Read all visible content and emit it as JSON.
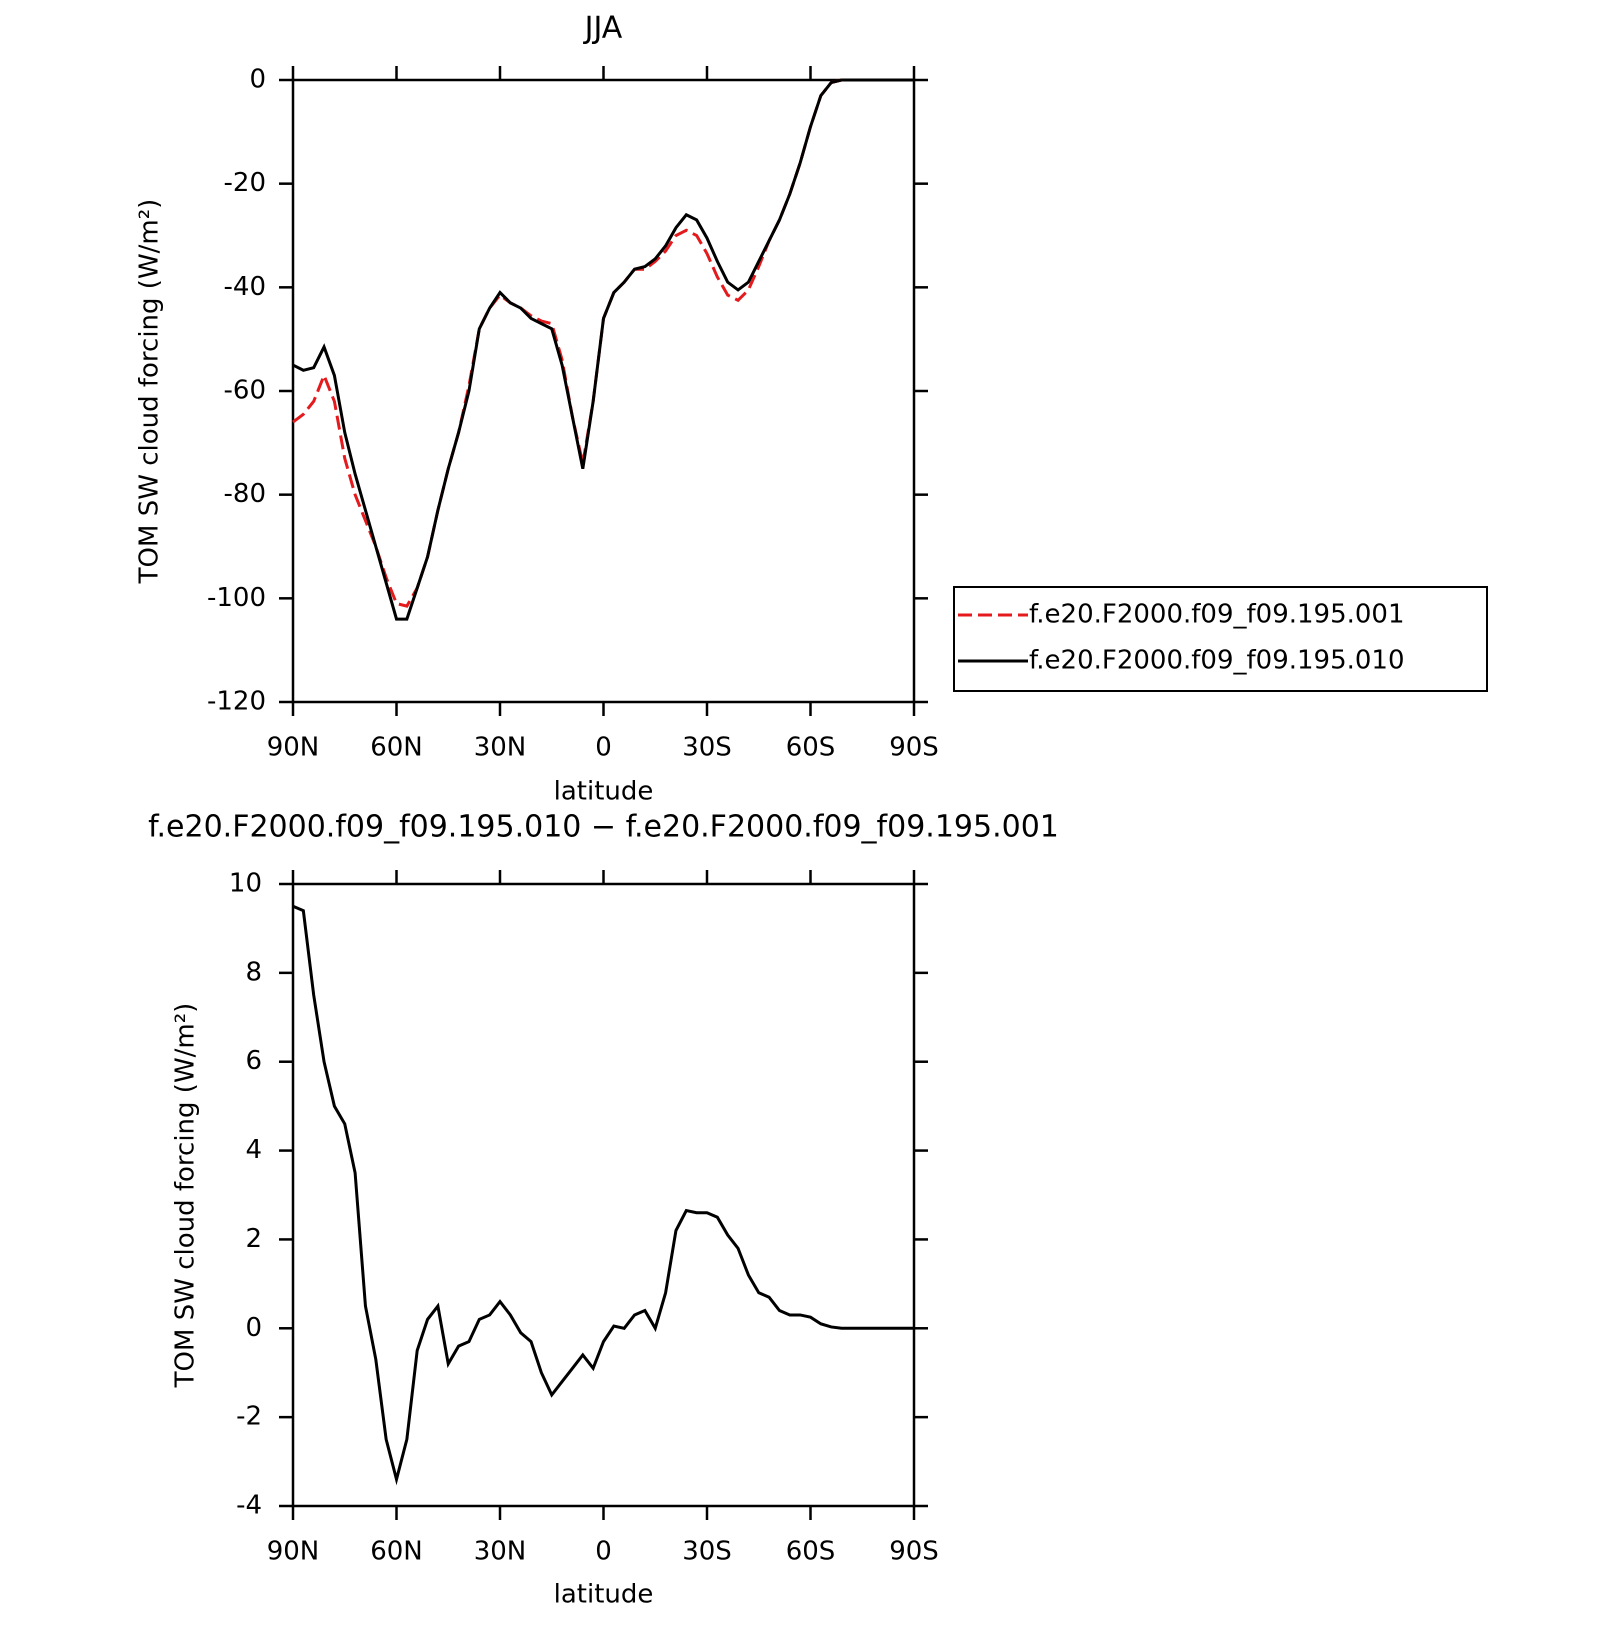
{
  "chart_data": [
    {
      "type": "line",
      "title": "JJA",
      "xlabel": "latitude",
      "ylabel": "TOM SW cloud forcing (W/m²)",
      "x": [
        90,
        87,
        84,
        81,
        78,
        75,
        72,
        69,
        66,
        63,
        60,
        57,
        54,
        51,
        48,
        45,
        42,
        39,
        36,
        33,
        30,
        27,
        24,
        21,
        18,
        15,
        12,
        9,
        6,
        3,
        0,
        -3,
        -6,
        -9,
        -12,
        -15,
        -18,
        -21,
        -24,
        -27,
        -30,
        -33,
        -36,
        -39,
        -42,
        -45,
        -48,
        -51,
        -54,
        -57,
        -60,
        -63,
        -66,
        -69,
        -72,
        -75,
        -78,
        -81,
        -84,
        -87,
        -90
      ],
      "xlim": [
        90,
        -90
      ],
      "xticks": [
        {
          "value": 90,
          "label": "90N"
        },
        {
          "value": 60,
          "label": "60N"
        },
        {
          "value": 30,
          "label": "30N"
        },
        0,
        {
          "value": -30,
          "label": "30S"
        },
        {
          "value": -60,
          "label": "60S"
        },
        {
          "value": -90,
          "label": "90S"
        }
      ],
      "ylim": [
        -120,
        0
      ],
      "yticks": [
        0,
        -20,
        -40,
        -60,
        -80,
        -100,
        -120
      ],
      "legend": "right",
      "series": [
        {
          "name": "f.e20.F2000.f09_f09.195.001",
          "color": "#e41a1c",
          "dash": true,
          "values": [
            -66,
            -64.5,
            -62,
            -57,
            -62,
            -73,
            -80,
            -85,
            -90,
            -96,
            -101,
            -101.5,
            -98,
            -92,
            -83,
            -75,
            -68,
            -59,
            -48,
            -44,
            -41.5,
            -43,
            -44,
            -45.5,
            -46.5,
            -47,
            -54,
            -65,
            -74,
            -62,
            -46,
            -41,
            -39,
            -36.5,
            -36.5,
            -35,
            -33,
            -30,
            -29,
            -30,
            -33.5,
            -38,
            -41.5,
            -42.5,
            -40.5,
            -36,
            -31,
            -27,
            -22,
            -16,
            -9,
            -3,
            -0.5,
            0,
            0,
            0,
            0,
            0,
            0,
            0,
            0
          ]
        },
        {
          "name": "f.e20.F2000.f09_f09.195.010",
          "color": "#000000",
          "dash": false,
          "values": [
            -55,
            -56,
            -55.5,
            -51.5,
            -57,
            -68,
            -76,
            -83,
            -90,
            -97,
            -104,
            -104,
            -98,
            -92,
            -83,
            -75,
            -68,
            -60,
            -48,
            -44,
            -41,
            -43,
            -44,
            -46,
            -47,
            -48,
            -55,
            -65,
            -75,
            -62,
            -46,
            -41,
            -39,
            -36.5,
            -36,
            -34.5,
            -32,
            -28.5,
            -26,
            -27,
            -30.5,
            -35,
            -39,
            -40.5,
            -39,
            -35,
            -31,
            -27,
            -22,
            -16,
            -9,
            -3,
            -0.5,
            0,
            0,
            0,
            0,
            0,
            0,
            0,
            0
          ]
        }
      ]
    },
    {
      "type": "line",
      "title": "f.e20.F2000.f09_f09.195.010 − f.e20.F2000.f09_f09.195.001",
      "xlabel": "latitude",
      "ylabel": "TOM SW cloud forcing (W/m²)",
      "x": [
        90,
        87,
        84,
        81,
        78,
        75,
        72,
        69,
        66,
        63,
        60,
        57,
        54,
        51,
        48,
        45,
        42,
        39,
        36,
        33,
        30,
        27,
        24,
        21,
        18,
        15,
        12,
        9,
        6,
        3,
        0,
        -3,
        -6,
        -9,
        -12,
        -15,
        -18,
        -21,
        -24,
        -27,
        -30,
        -33,
        -36,
        -39,
        -42,
        -45,
        -48,
        -51,
        -54,
        -57,
        -60,
        -63,
        -66,
        -69,
        -72,
        -75,
        -78,
        -81,
        -84,
        -87,
        -90
      ],
      "xlim": [
        90,
        -90
      ],
      "xticks": [
        {
          "value": 90,
          "label": "90N"
        },
        {
          "value": 60,
          "label": "60N"
        },
        {
          "value": 30,
          "label": "30N"
        },
        0,
        {
          "value": -30,
          "label": "30S"
        },
        {
          "value": -60,
          "label": "60S"
        },
        {
          "value": -90,
          "label": "90S"
        }
      ],
      "ylim": [
        -4,
        10
      ],
      "yticks": [
        10,
        8,
        6,
        4,
        2,
        0,
        -2,
        -4
      ],
      "series": [
        {
          "color": "#000000",
          "dash": false,
          "values": [
            9.5,
            9.4,
            7.5,
            6,
            5,
            4.6,
            3.5,
            0.5,
            -0.7,
            -2.5,
            -3.4,
            -2.5,
            -0.5,
            0.2,
            0.5,
            -0.8,
            -0.4,
            -0.3,
            0.2,
            0.3,
            0.6,
            0.3,
            -0.1,
            -0.3,
            -1.0,
            -1.5,
            -1.2,
            -0.9,
            -0.6,
            -0.9,
            -0.3,
            0.05,
            0,
            0.3,
            0.4,
            0,
            0.8,
            2.2,
            2.65,
            2.6,
            2.6,
            2.5,
            2.1,
            1.8,
            1.2,
            0.8,
            0.7,
            0.4,
            0.3,
            0.3,
            0.25,
            0.1,
            0.03,
            0,
            0,
            0,
            0,
            0,
            0,
            0,
            0
          ]
        }
      ]
    }
  ]
}
